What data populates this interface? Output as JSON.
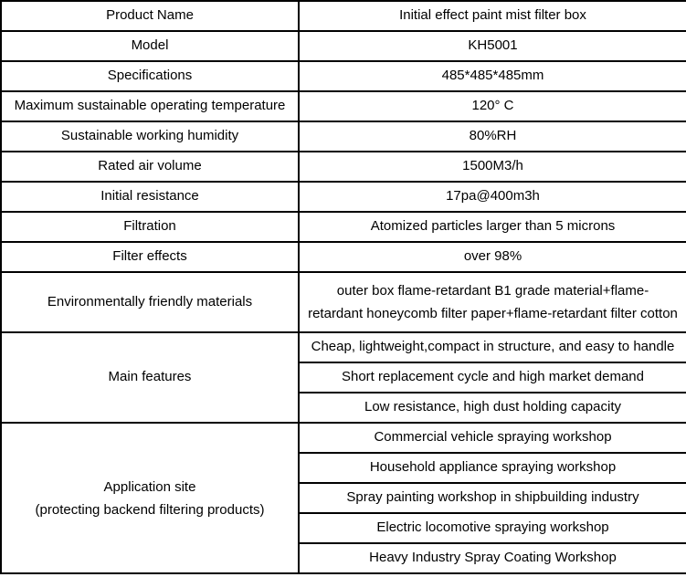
{
  "page": {
    "background_color": "#ffffff",
    "border_color": "#000000",
    "text_color": "#000000"
  },
  "table": {
    "spec_rows": [
      {
        "label": "Product Name",
        "value": "Initial effect paint mist filter box"
      },
      {
        "label": "Model",
        "value": "KH5001"
      },
      {
        "label": "Specifications",
        "value": "485*485*485mm"
      },
      {
        "label": "Maximum sustainable operating temperature",
        "value": "120° C"
      },
      {
        "label": "Sustainable working humidity",
        "value": "80%RH"
      },
      {
        "label": "Rated air volume",
        "value": "1500M3/h"
      },
      {
        "label": "Initial resistance",
        "value": "17pa@400m3h"
      },
      {
        "label": "Filtration",
        "value": "Atomized particles larger than 5 microns"
      },
      {
        "label": "Filter effects",
        "value": "over 98%"
      }
    ],
    "materials_row": {
      "label": "Environmentally friendly materials",
      "value": "outer box flame-retardant B1 grade material+flame-retardant honeycomb filter paper+flame-retardant filter cotton"
    },
    "main_features": {
      "label": "Main features",
      "items": [
        "Cheap, lightweight,compact in structure, and easy to handle",
        "Short replacement cycle and high market demand",
        "Low resistance, high dust holding capacity"
      ]
    },
    "application_site": {
      "label_line1": "Application site",
      "label_line2": "(protecting backend filtering products)",
      "items": [
        "Commercial vehicle spraying workshop",
        "Household appliance spraying workshop",
        "Spray painting workshop in shipbuilding industry",
        "Electric locomotive spraying workshop",
        "Heavy Industry Spray Coating Workshop"
      ]
    }
  }
}
